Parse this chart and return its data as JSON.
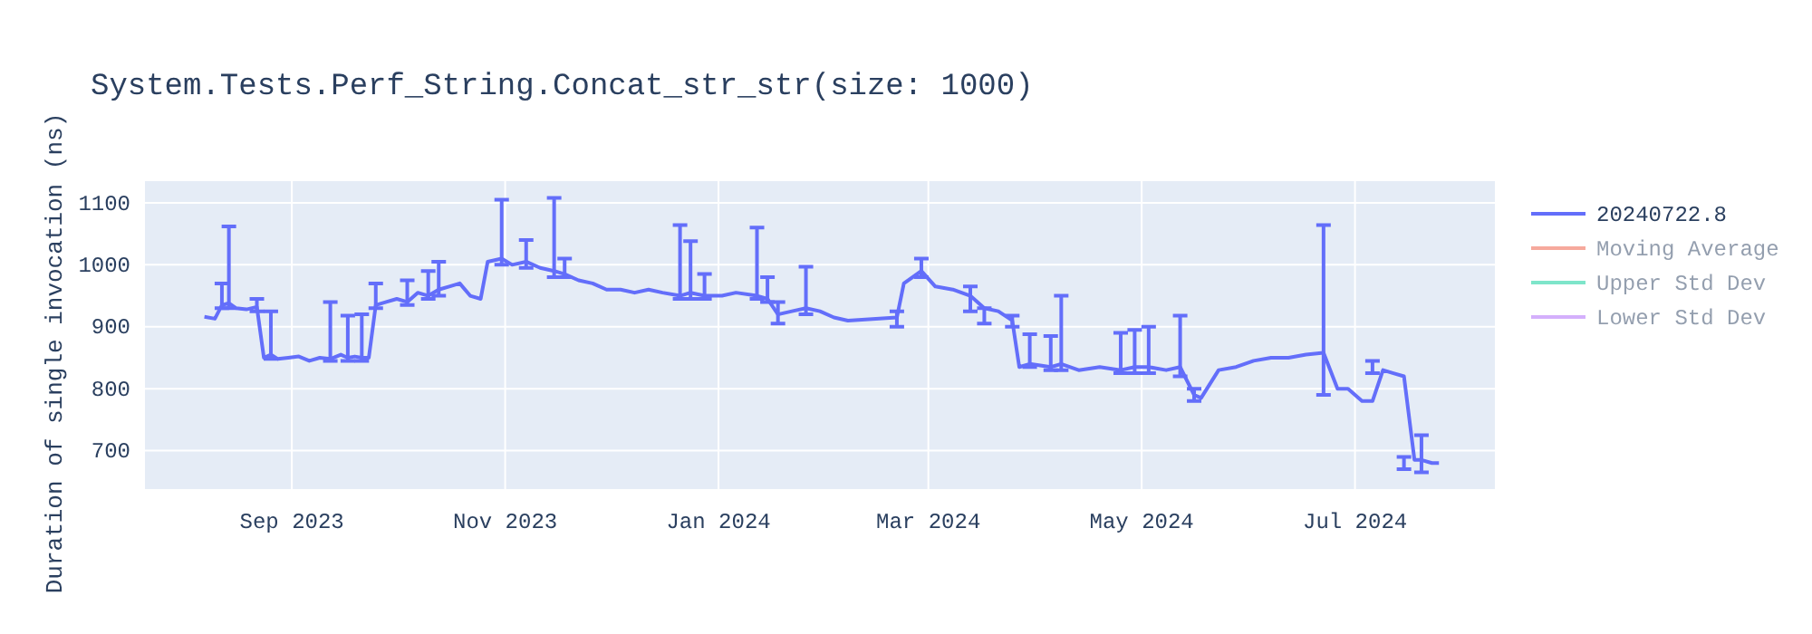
{
  "chart_data": {
    "type": "line",
    "title": "System.Tests.Perf_String.Concat_str_str(size: 1000)",
    "ylabel": "Duration of single invocation (ns)",
    "xlim": [
      "2023-07-21",
      "2024-08-10"
    ],
    "ylim": [
      638,
      1135
    ],
    "xticks": [
      {
        "value": "2023-09-01",
        "label": "Sep 2023"
      },
      {
        "value": "2023-11-01",
        "label": "Nov 2023"
      },
      {
        "value": "2024-01-01",
        "label": "Jan 2024"
      },
      {
        "value": "2024-03-01",
        "label": "Mar 2024"
      },
      {
        "value": "2024-05-01",
        "label": "May 2024"
      },
      {
        "value": "2024-07-01",
        "label": "Jul 2024"
      }
    ],
    "yticks": [
      700,
      800,
      900,
      1000,
      1100
    ],
    "grid": true,
    "legend": "top right",
    "marker": "none",
    "line_style": "solid",
    "series": [
      {
        "name": "20240722.8",
        "color": "#636efa",
        "x": [
          "2023-08-07",
          "2023-08-10",
          "2023-08-12",
          "2023-08-14",
          "2023-08-16",
          "2023-08-19",
          "2023-08-22",
          "2023-08-24",
          "2023-08-26",
          "2023-08-28",
          "2023-08-31",
          "2023-09-03",
          "2023-09-06",
          "2023-09-09",
          "2023-09-12",
          "2023-09-15",
          "2023-09-17",
          "2023-09-19",
          "2023-09-21",
          "2023-09-23",
          "2023-09-25",
          "2023-09-28",
          "2023-10-01",
          "2023-10-04",
          "2023-10-07",
          "2023-10-10",
          "2023-10-13",
          "2023-10-16",
          "2023-10-19",
          "2023-10-22",
          "2023-10-25",
          "2023-10-27",
          "2023-10-31",
          "2023-11-03",
          "2023-11-07",
          "2023-11-11",
          "2023-11-15",
          "2023-11-18",
          "2023-11-22",
          "2023-11-26",
          "2023-11-30",
          "2023-12-04",
          "2023-12-08",
          "2023-12-12",
          "2023-12-16",
          "2023-12-21",
          "2023-12-24",
          "2023-12-28",
          "2024-01-02",
          "2024-01-06",
          "2024-01-12",
          "2024-01-15",
          "2024-01-18",
          "2024-01-22",
          "2024-01-26",
          "2024-01-30",
          "2024-02-03",
          "2024-02-07",
          "2024-02-21",
          "2024-02-23",
          "2024-02-28",
          "2024-03-03",
          "2024-03-08",
          "2024-03-13",
          "2024-03-17",
          "2024-03-21",
          "2024-03-25",
          "2024-03-27",
          "2024-03-30",
          "2024-04-05",
          "2024-04-08",
          "2024-04-13",
          "2024-04-19",
          "2024-04-25",
          "2024-04-29",
          "2024-05-03",
          "2024-05-08",
          "2024-05-12",
          "2024-05-16",
          "2024-05-18",
          "2024-05-23",
          "2024-05-28",
          "2024-06-02",
          "2024-06-07",
          "2024-06-12",
          "2024-06-17",
          "2024-06-22",
          "2024-06-26",
          "2024-06-29",
          "2024-07-03",
          "2024-07-06",
          "2024-07-09",
          "2024-07-12",
          "2024-07-15",
          "2024-07-18",
          "2024-07-20",
          "2024-07-23",
          "2024-07-25"
        ],
        "values": [
          916,
          913,
          935,
          938,
          930,
          928,
          932,
          850,
          855,
          848,
          850,
          852,
          845,
          850,
          848,
          855,
          850,
          852,
          850,
          850,
          935,
          940,
          945,
          940,
          955,
          950,
          960,
          965,
          970,
          950,
          945,
          1005,
          1010,
          1000,
          1005,
          995,
          990,
          985,
          975,
          970,
          960,
          960,
          955,
          960,
          955,
          950,
          955,
          950,
          950,
          955,
          950,
          945,
          920,
          925,
          930,
          925,
          915,
          910,
          915,
          970,
          990,
          965,
          960,
          950,
          930,
          925,
          910,
          835,
          840,
          835,
          840,
          830,
          835,
          830,
          835,
          835,
          830,
          835,
          790,
          785,
          830,
          835,
          845,
          850,
          850,
          855,
          858,
          800,
          800,
          780,
          780,
          830,
          825,
          820,
          685,
          685,
          680,
          680
        ],
        "errors": [
          null,
          null,
          [
            930,
            970
          ],
          [
            930,
            1062
          ],
          null,
          null,
          [
            925,
            945
          ],
          null,
          [
            848,
            925
          ],
          null,
          null,
          null,
          null,
          null,
          [
            845,
            940
          ],
          null,
          [
            845,
            918
          ],
          null,
          [
            845,
            920
          ],
          null,
          [
            930,
            970
          ],
          null,
          null,
          [
            935,
            975
          ],
          null,
          [
            945,
            990
          ],
          [
            950,
            1005
          ],
          null,
          null,
          null,
          null,
          null,
          [
            1000,
            1105
          ],
          null,
          [
            995,
            1040
          ],
          null,
          [
            980,
            1108
          ],
          [
            980,
            1010
          ],
          null,
          null,
          null,
          null,
          null,
          null,
          null,
          [
            945,
            1064
          ],
          [
            945,
            1038
          ],
          [
            945,
            985
          ],
          null,
          null,
          [
            945,
            1060
          ],
          [
            940,
            980
          ],
          [
            905,
            940
          ],
          null,
          [
            920,
            997
          ],
          null,
          null,
          null,
          [
            900,
            925
          ],
          null,
          [
            980,
            1010
          ],
          null,
          null,
          [
            925,
            965
          ],
          [
            905,
            930
          ],
          null,
          [
            900,
            918
          ],
          null,
          [
            835,
            888
          ],
          [
            830,
            885
          ],
          [
            830,
            950
          ],
          null,
          null,
          [
            825,
            890
          ],
          [
            825,
            895
          ],
          [
            825,
            900
          ],
          null,
          [
            820,
            918
          ],
          [
            780,
            800
          ],
          null,
          null,
          null,
          null,
          null,
          null,
          null,
          [
            790,
            1064
          ],
          null,
          null,
          null,
          [
            825,
            845
          ],
          null,
          null,
          [
            670,
            690
          ],
          null,
          [
            665,
            725
          ],
          null,
          null
        ]
      },
      {
        "name": "Moving Average",
        "color": "#ef553b"
      },
      {
        "name": "Upper Std Dev",
        "color": "#00cc96"
      },
      {
        "name": "Lower Std Dev",
        "color": "#ab63fa"
      }
    ]
  }
}
